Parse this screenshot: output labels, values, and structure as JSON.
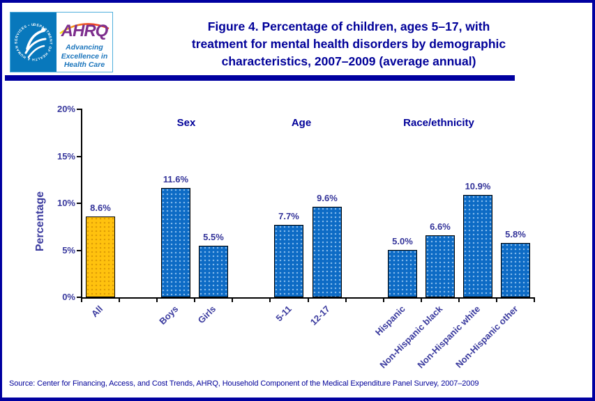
{
  "window": {
    "border_color": "#0000A0",
    "background": "#FFFFFF"
  },
  "header": {
    "logo": {
      "seal_text": "DEPARTMENT OF HEALTH & HUMAN SERVICES • USA",
      "org_name": "AHRQ",
      "tagline": "Advancing\nExcellence in\nHealth Care"
    },
    "title": "Figure 4. Percentage of children, ages 5–17, with\ntreatment for mental health disorders by demographic\ncharacteristics, 2007–2009 (average annual)"
  },
  "chart_data": {
    "type": "bar",
    "title": "Figure 4. Percentage of children, ages 5–17, with treatment for mental health disorders by demographic characteristics, 2007–2009 (average annual)",
    "xlabel": "",
    "ylabel": "Percentage",
    "ylim": [
      0,
      20
    ],
    "ytick_labels": [
      "0%",
      "5%",
      "10%",
      "15%",
      "20%"
    ],
    "grid": false,
    "legend": false,
    "bar_outline": "#000000",
    "colors": {
      "highlight": "#FFC20E",
      "default": "#0D6BC5"
    },
    "groups": [
      {
        "header": "",
        "bars": [
          {
            "category": "All",
            "value": 8.6,
            "label": "8.6%",
            "color": "highlight"
          }
        ]
      },
      {
        "header": "Sex",
        "bars": [
          {
            "category": "Boys",
            "value": 11.6,
            "label": "11.6%",
            "color": "default"
          },
          {
            "category": "Girls",
            "value": 5.5,
            "label": "5.5%",
            "color": "default"
          }
        ]
      },
      {
        "header": "Age",
        "bars": [
          {
            "category": "5-11",
            "value": 7.7,
            "label": "7.7%",
            "color": "default"
          },
          {
            "category": "12-17",
            "value": 9.6,
            "label": "9.6%",
            "color": "default"
          }
        ]
      },
      {
        "header": "Race/ethnicity",
        "bars": [
          {
            "category": "Hispanic",
            "value": 5.0,
            "label": "5.0%",
            "color": "default"
          },
          {
            "category": "Non-Hispanic black",
            "value": 6.6,
            "label": "6.6%",
            "color": "default"
          },
          {
            "category": "Non-Hispanic white",
            "value": 10.9,
            "label": "10.9%",
            "color": "default"
          },
          {
            "category": "Non-Hispanic other",
            "value": 5.8,
            "label": "5.8%",
            "color": "default"
          }
        ]
      }
    ]
  },
  "footer": {
    "source": "Source: Center for Financing, Access, and Cost Trends, AHRQ, Household Component of the Medical Expenditure Panel Survey, 2007–2009"
  }
}
